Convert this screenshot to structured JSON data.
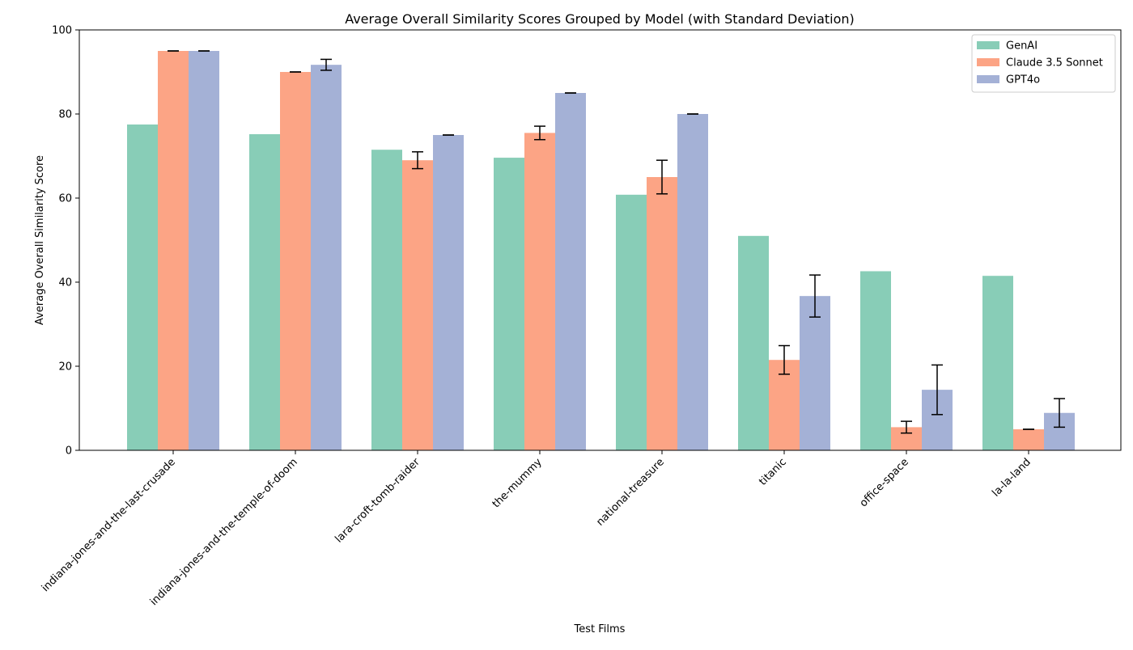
{
  "chart_data": {
    "type": "bar",
    "title": "Average Overall Similarity Scores Grouped by Model (with Standard Deviation)",
    "xlabel": "Test Films",
    "ylabel": "Average Overall Similarity Score",
    "ylim": [
      0,
      100
    ],
    "yticks": [
      0,
      20,
      40,
      60,
      80,
      100
    ],
    "grid": false,
    "legend_position": "top-right",
    "categories": [
      "indiana-jones-and-the-last-crusade",
      "indiana-jones-and-the-temple-of-doom",
      "lara-croft-tomb-raider",
      "the-mummy",
      "national-treasure",
      "titanic",
      "office-space",
      "la-la-land"
    ],
    "series": [
      {
        "name": "GenAI",
        "color": "#88cdb7",
        "values": [
          77.5,
          75.2,
          71.5,
          69.6,
          60.8,
          51.0,
          42.6,
          41.5
        ],
        "std": [
          null,
          null,
          null,
          null,
          null,
          null,
          null,
          null
        ]
      },
      {
        "name": "Claude 3.5 Sonnet",
        "color": "#fca485",
        "values": [
          95.0,
          90.0,
          69.0,
          75.5,
          65.0,
          21.5,
          5.5,
          5.0
        ],
        "std": [
          0,
          0,
          2.0,
          1.6,
          4.0,
          3.4,
          1.4,
          0
        ]
      },
      {
        "name": "GPT4o",
        "color": "#a4b1d6",
        "values": [
          95.0,
          91.7,
          75.0,
          85.0,
          80.0,
          36.7,
          14.4,
          8.9
        ],
        "std": [
          0,
          1.3,
          0,
          0,
          0,
          5.0,
          5.9,
          3.4
        ]
      }
    ]
  }
}
